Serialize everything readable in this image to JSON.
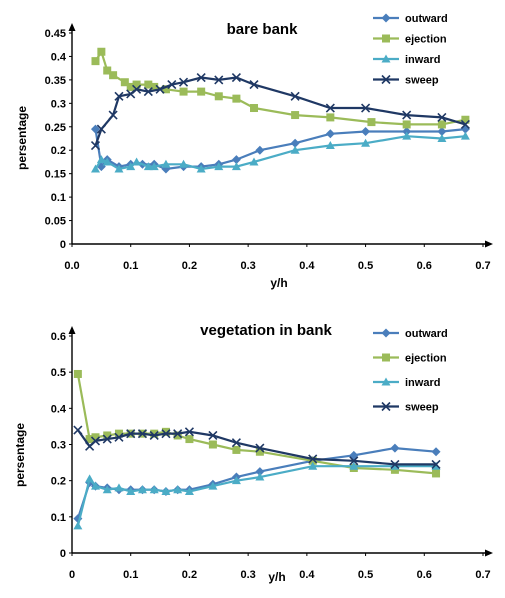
{
  "chart_data": [
    {
      "type": "line",
      "title": "bare bank",
      "xlabel": "y/h",
      "ylabel": "persentage",
      "xlim": [
        0,
        0.7
      ],
      "ylim": [
        0,
        0.45
      ],
      "xticks": [
        "0.0",
        "0.1",
        "0.2",
        "0.3",
        "0.4",
        "0.5",
        "0.6",
        "0.7"
      ],
      "yticks": [
        "0",
        "0.05",
        "0.1",
        "0.15",
        "0.2",
        "0.25",
        "0.3",
        "0.35",
        "0.4",
        "0.45"
      ],
      "legend_position": "top-right",
      "series": [
        {
          "name": "outward",
          "color": "#4a7ebb",
          "marker": "diamond",
          "x": [
            0.04,
            0.05,
            0.06,
            0.08,
            0.1,
            0.12,
            0.14,
            0.16,
            0.19,
            0.22,
            0.25,
            0.28,
            0.32,
            0.38,
            0.44,
            0.5,
            0.57,
            0.63,
            0.67
          ],
          "y": [
            0.245,
            0.165,
            0.18,
            0.165,
            0.17,
            0.17,
            0.17,
            0.16,
            0.165,
            0.165,
            0.17,
            0.18,
            0.2,
            0.215,
            0.235,
            0.24,
            0.24,
            0.24,
            0.245
          ]
        },
        {
          "name": "ejection",
          "color": "#9bbb59",
          "marker": "square",
          "x": [
            0.04,
            0.05,
            0.06,
            0.07,
            0.09,
            0.1,
            0.11,
            0.13,
            0.14,
            0.16,
            0.19,
            0.22,
            0.25,
            0.28,
            0.31,
            0.38,
            0.44,
            0.51,
            0.57,
            0.63,
            0.67
          ],
          "y": [
            0.39,
            0.41,
            0.37,
            0.36,
            0.345,
            0.335,
            0.34,
            0.34,
            0.335,
            0.33,
            0.325,
            0.325,
            0.315,
            0.31,
            0.29,
            0.275,
            0.27,
            0.26,
            0.255,
            0.255,
            0.265
          ]
        },
        {
          "name": "inward",
          "color": "#4bacc6",
          "marker": "triangle",
          "x": [
            0.04,
            0.05,
            0.06,
            0.08,
            0.1,
            0.11,
            0.13,
            0.14,
            0.16,
            0.19,
            0.22,
            0.25,
            0.28,
            0.31,
            0.38,
            0.44,
            0.5,
            0.57,
            0.63,
            0.67
          ],
          "y": [
            0.16,
            0.18,
            0.175,
            0.16,
            0.165,
            0.175,
            0.165,
            0.165,
            0.17,
            0.17,
            0.16,
            0.165,
            0.165,
            0.175,
            0.2,
            0.21,
            0.215,
            0.23,
            0.225,
            0.23
          ]
        },
        {
          "name": "sweep",
          "color": "#1f3864",
          "marker": "x",
          "x": [
            0.04,
            0.05,
            0.07,
            0.08,
            0.1,
            0.11,
            0.13,
            0.15,
            0.17,
            0.19,
            0.22,
            0.25,
            0.28,
            0.31,
            0.38,
            0.44,
            0.5,
            0.57,
            0.63,
            0.67
          ],
          "y": [
            0.21,
            0.245,
            0.275,
            0.315,
            0.32,
            0.33,
            0.325,
            0.33,
            0.34,
            0.345,
            0.355,
            0.35,
            0.355,
            0.34,
            0.315,
            0.29,
            0.29,
            0.275,
            0.27,
            0.255
          ]
        }
      ]
    },
    {
      "type": "line",
      "title": "vegetation in bank",
      "xlabel": "y/h",
      "ylabel": "persentage",
      "xlim": [
        0,
        0.7
      ],
      "ylim": [
        0,
        0.6
      ],
      "xticks": [
        "0",
        "0.1",
        "0.2",
        "0.3",
        "0.4",
        "0.5",
        "0.6",
        "0.7"
      ],
      "yticks": [
        "0",
        "0.1",
        "0.2",
        "0.3",
        "0.4",
        "0.5",
        "0.6"
      ],
      "legend_position": "top-right",
      "series": [
        {
          "name": "outward",
          "color": "#4a7ebb",
          "marker": "diamond",
          "x": [
            0.01,
            0.03,
            0.04,
            0.06,
            0.08,
            0.1,
            0.12,
            0.14,
            0.16,
            0.18,
            0.2,
            0.24,
            0.28,
            0.32,
            0.41,
            0.48,
            0.55,
            0.62
          ],
          "y": [
            0.095,
            0.195,
            0.185,
            0.18,
            0.175,
            0.175,
            0.175,
            0.175,
            0.17,
            0.175,
            0.175,
            0.19,
            0.21,
            0.225,
            0.255,
            0.27,
            0.29,
            0.28
          ]
        },
        {
          "name": "ejection",
          "color": "#9bbb59",
          "marker": "square",
          "x": [
            0.01,
            0.03,
            0.04,
            0.06,
            0.08,
            0.1,
            0.12,
            0.14,
            0.16,
            0.18,
            0.2,
            0.24,
            0.28,
            0.32,
            0.41,
            0.48,
            0.55,
            0.62
          ],
          "y": [
            0.495,
            0.315,
            0.32,
            0.325,
            0.33,
            0.33,
            0.33,
            0.33,
            0.335,
            0.325,
            0.315,
            0.3,
            0.285,
            0.28,
            0.255,
            0.235,
            0.23,
            0.22
          ]
        },
        {
          "name": "inward",
          "color": "#4bacc6",
          "marker": "triangle",
          "x": [
            0.01,
            0.03,
            0.04,
            0.06,
            0.08,
            0.1,
            0.12,
            0.14,
            0.16,
            0.18,
            0.2,
            0.24,
            0.28,
            0.32,
            0.41,
            0.48,
            0.55,
            0.62
          ],
          "y": [
            0.075,
            0.205,
            0.185,
            0.175,
            0.18,
            0.17,
            0.175,
            0.175,
            0.17,
            0.175,
            0.17,
            0.185,
            0.2,
            0.21,
            0.24,
            0.24,
            0.24,
            0.24
          ]
        },
        {
          "name": "sweep",
          "color": "#1f3864",
          "marker": "x",
          "x": [
            0.01,
            0.03,
            0.04,
            0.06,
            0.08,
            0.1,
            0.12,
            0.14,
            0.16,
            0.18,
            0.2,
            0.24,
            0.28,
            0.32,
            0.41,
            0.48,
            0.55,
            0.62
          ],
          "y": [
            0.34,
            0.295,
            0.31,
            0.315,
            0.32,
            0.33,
            0.33,
            0.325,
            0.33,
            0.33,
            0.335,
            0.325,
            0.305,
            0.29,
            0.26,
            0.255,
            0.245,
            0.245
          ]
        }
      ]
    }
  ]
}
